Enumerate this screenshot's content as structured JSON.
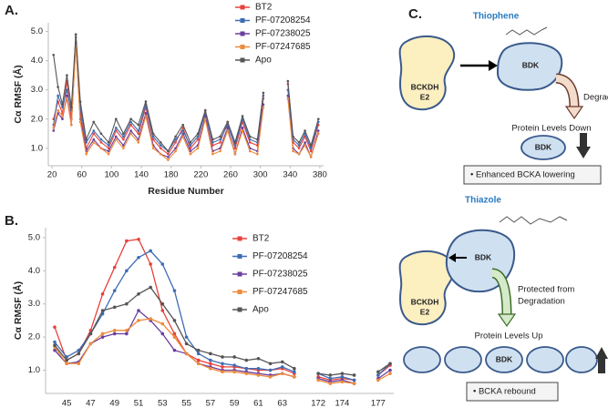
{
  "chart_data": [
    {
      "type": "line",
      "panel_label": "A.",
      "x_label": "Residue Number",
      "y_label": "Cα RMSF (Å)",
      "x": [
        22,
        28,
        34,
        40,
        46,
        52,
        58,
        66,
        76,
        86,
        96,
        106,
        116,
        126,
        136,
        146,
        156,
        166,
        176,
        186,
        196,
        206,
        216,
        226,
        236,
        246,
        256,
        266,
        276,
        286,
        296,
        304,
        320,
        337,
        344,
        352,
        360,
        368,
        378
      ],
      "series": [
        {
          "name": "BT2",
          "color": "#e8413c",
          "values": [
            2.0,
            2.6,
            2.2,
            3.3,
            2.0,
            4.9,
            2.2,
            1.0,
            1.5,
            1.2,
            1.0,
            1.6,
            1.3,
            1.8,
            1.5,
            2.4,
            1.3,
            1.0,
            0.8,
            1.2,
            1.7,
            1.0,
            1.3,
            2.3,
            1.1,
            1.2,
            1.9,
            1.0,
            1.9,
            1.2,
            1.1,
            2.7,
            null,
            3.2,
            1.2,
            1.0,
            1.4,
            0.9,
            1.8
          ]
        },
        {
          "name": "PF-07208254",
          "color": "#3f6db5",
          "values": [
            1.8,
            2.8,
            2.4,
            3.0,
            2.3,
            4.8,
            2.4,
            1.2,
            1.6,
            1.3,
            1.1,
            1.7,
            1.4,
            1.9,
            1.6,
            2.5,
            1.4,
            1.1,
            0.9,
            1.3,
            1.6,
            1.1,
            1.4,
            2.2,
            1.2,
            1.3,
            1.8,
            1.1,
            2.0,
            1.3,
            1.2,
            2.8,
            null,
            3.0,
            1.3,
            1.1,
            1.5,
            1.0,
            1.9
          ]
        },
        {
          "name": "PF-07238025",
          "color": "#6a3fa0",
          "values": [
            1.6,
            2.2,
            2.0,
            2.8,
            1.8,
            4.6,
            2.0,
            0.9,
            1.3,
            1.0,
            0.9,
            1.4,
            1.1,
            1.6,
            1.3,
            2.2,
            1.1,
            0.8,
            0.7,
            1.0,
            1.5,
            0.9,
            1.1,
            2.1,
            0.9,
            1.0,
            1.7,
            0.8,
            1.7,
            1.0,
            0.9,
            2.5,
            null,
            2.8,
            1.0,
            0.8,
            1.2,
            0.7,
            1.6
          ]
        },
        {
          "name": "PF-07247685",
          "color": "#ef8a3a",
          "values": [
            1.7,
            2.3,
            2.1,
            2.7,
            1.8,
            4.5,
            1.9,
            0.8,
            1.2,
            1.0,
            0.8,
            1.3,
            1.0,
            1.5,
            1.2,
            2.1,
            1.0,
            0.8,
            0.6,
            0.9,
            1.4,
            0.8,
            1.0,
            2.0,
            0.8,
            0.9,
            1.6,
            0.8,
            1.6,
            0.9,
            0.8,
            2.4,
            null,
            2.7,
            0.9,
            0.8,
            1.1,
            0.7,
            1.5
          ]
        },
        {
          "name": "Apo",
          "color": "#555555",
          "values": [
            4.2,
            3.1,
            2.5,
            3.5,
            2.4,
            4.9,
            2.6,
            1.3,
            1.9,
            1.5,
            1.2,
            2.0,
            1.5,
            2.0,
            1.8,
            2.6,
            1.5,
            1.2,
            0.9,
            1.4,
            1.8,
            1.2,
            1.5,
            2.3,
            1.3,
            1.4,
            1.9,
            1.2,
            2.1,
            1.4,
            1.3,
            2.9,
            null,
            3.3,
            1.4,
            1.2,
            1.6,
            1.1,
            2.0
          ]
        }
      ],
      "xlim": [
        15,
        385
      ],
      "xticks": [
        20,
        60,
        100,
        140,
        180,
        220,
        260,
        300,
        340,
        380
      ],
      "ylim": [
        0.4,
        5.3
      ],
      "yticks": [
        {
          "value": 1,
          "label": "1.0"
        },
        {
          "value": 2,
          "label": "2.0"
        },
        {
          "value": 3,
          "label": "3.0"
        },
        {
          "value": 4,
          "label": "4.0"
        },
        {
          "value": 5,
          "label": "5.0"
        }
      ],
      "markers": true,
      "legend": "upper right"
    },
    {
      "type": "line",
      "panel_label": "B.",
      "y_label": "Cα RMSF (Å)",
      "categories": [
        null,
        "45",
        null,
        "47",
        null,
        "49",
        null,
        "51",
        null,
        "53",
        null,
        "55",
        null,
        "57",
        null,
        "59",
        null,
        "61",
        null,
        "63",
        null,
        null,
        "172",
        null,
        "174",
        null,
        null,
        "177",
        null
      ],
      "series": [
        {
          "name": "BT2",
          "color": "#e8413c",
          "values": [
            2.3,
            1.3,
            1.5,
            2.2,
            3.3,
            4.1,
            4.9,
            4.95,
            4.2,
            2.8,
            2.1,
            1.5,
            1.3,
            1.2,
            1.1,
            1.1,
            1.05,
            1.0,
            1.0,
            1.05,
            0.9,
            null,
            0.8,
            0.7,
            0.75,
            0.7,
            null,
            0.85,
            1.15
          ]
        },
        {
          "name": "PF-07208254",
          "color": "#3f6db5",
          "values": [
            1.85,
            1.4,
            1.6,
            2.1,
            2.7,
            3.4,
            4.0,
            4.4,
            4.6,
            4.2,
            3.4,
            2.0,
            1.5,
            1.3,
            1.2,
            1.15,
            1.05,
            1.05,
            1.0,
            1.1,
            0.95,
            null,
            0.9,
            0.75,
            0.8,
            0.7,
            null,
            0.85,
            1.2
          ]
        },
        {
          "name": "PF-07238025",
          "color": "#6a3fa0",
          "values": [
            1.6,
            1.2,
            1.25,
            1.8,
            2.0,
            2.1,
            2.1,
            2.8,
            2.5,
            2.1,
            1.6,
            1.5,
            1.2,
            1.1,
            1.0,
            1.0,
            0.95,
            0.9,
            0.85,
            0.9,
            0.8,
            null,
            0.75,
            0.65,
            0.7,
            0.6,
            null,
            0.75,
            1.0
          ]
        },
        {
          "name": "PF-07247685",
          "color": "#ef8a3a",
          "values": [
            1.7,
            1.2,
            1.2,
            1.8,
            2.1,
            2.2,
            2.2,
            2.5,
            2.55,
            2.4,
            2.0,
            1.5,
            1.2,
            1.05,
            0.95,
            0.95,
            0.9,
            0.85,
            0.8,
            0.9,
            0.8,
            null,
            0.7,
            0.6,
            0.65,
            0.6,
            null,
            0.7,
            0.9
          ]
        },
        {
          "name": "Apo",
          "color": "#555555",
          "values": [
            1.75,
            1.3,
            1.5,
            2.1,
            2.8,
            2.9,
            3.0,
            3.3,
            3.5,
            3.0,
            2.5,
            1.8,
            1.6,
            1.5,
            1.4,
            1.4,
            1.3,
            1.35,
            1.2,
            1.25,
            1.05,
            null,
            0.9,
            0.85,
            0.9,
            0.85,
            null,
            0.95,
            1.2
          ]
        }
      ],
      "ylim": [
        0.3,
        5.3
      ],
      "yticks": [
        {
          "value": 1,
          "label": "1.0"
        },
        {
          "value": 2,
          "label": "2.0"
        },
        {
          "value": 3,
          "label": "3.0"
        },
        {
          "value": 4,
          "label": "4.0"
        },
        {
          "value": 5,
          "label": "5.0"
        }
      ],
      "markers": true,
      "legend": "upper right"
    }
  ],
  "diagram": {
    "panel_label": "C.",
    "top": {
      "title": "Thiophene",
      "e2": [
        "BCKDH",
        "E2"
      ],
      "bdk": "BDK",
      "arrow_label": "Degraded",
      "outcome": "Protein Levels Down",
      "small_bdk": "BDK",
      "result": "•  Enhanced BCKA lowering"
    },
    "bottom": {
      "title": "Thiazole",
      "e2": [
        "BCKDH",
        "E2"
      ],
      "bdk": "BDK",
      "arrow_label": [
        "Protected from",
        "Degradation"
      ],
      "outcome": "Protein Levels Up",
      "row_bdk": "BDK",
      "result": "•  BCKA rebound"
    }
  }
}
